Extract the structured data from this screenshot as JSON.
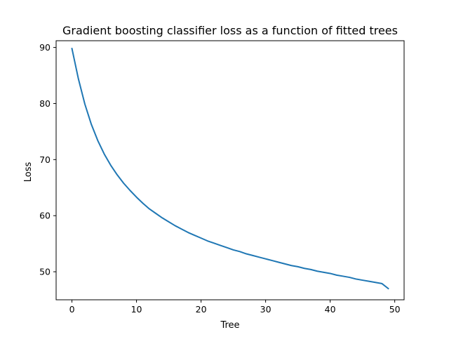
{
  "chart_data": {
    "type": "line",
    "title": "Gradient boosting classifier loss as a function of fitted trees",
    "xlabel": "Tree",
    "ylabel": "Loss",
    "xlim": [
      -2.45,
      51.45
    ],
    "ylim": [
      45.0,
      91.2
    ],
    "x_ticks": [
      0,
      10,
      20,
      30,
      40,
      50
    ],
    "y_ticks": [
      50,
      60,
      70,
      80,
      90
    ],
    "grid": false,
    "legend": "none",
    "series": [
      {
        "color": "#1f77b4",
        "x": [
          0,
          1,
          2,
          3,
          4,
          5,
          6,
          7,
          8,
          9,
          10,
          11,
          12,
          13,
          14,
          15,
          16,
          17,
          18,
          19,
          20,
          21,
          22,
          23,
          24,
          25,
          26,
          27,
          28,
          29,
          30,
          31,
          32,
          33,
          34,
          35,
          36,
          37,
          38,
          39,
          40,
          41,
          42,
          43,
          44,
          45,
          46,
          47,
          48,
          49
        ],
        "values": [
          89.8,
          84.4,
          79.9,
          76.3,
          73.4,
          71.0,
          69.0,
          67.3,
          65.8,
          64.5,
          63.3,
          62.2,
          61.2,
          60.4,
          59.6,
          58.9,
          58.2,
          57.6,
          57.0,
          56.5,
          56.0,
          55.5,
          55.1,
          54.7,
          54.3,
          53.9,
          53.6,
          53.2,
          52.9,
          52.6,
          52.3,
          52.0,
          51.7,
          51.4,
          51.1,
          50.9,
          50.6,
          50.4,
          50.1,
          49.9,
          49.7,
          49.4,
          49.2,
          49.0,
          48.7,
          48.5,
          48.3,
          48.1,
          47.9,
          47.0
        ]
      }
    ]
  }
}
